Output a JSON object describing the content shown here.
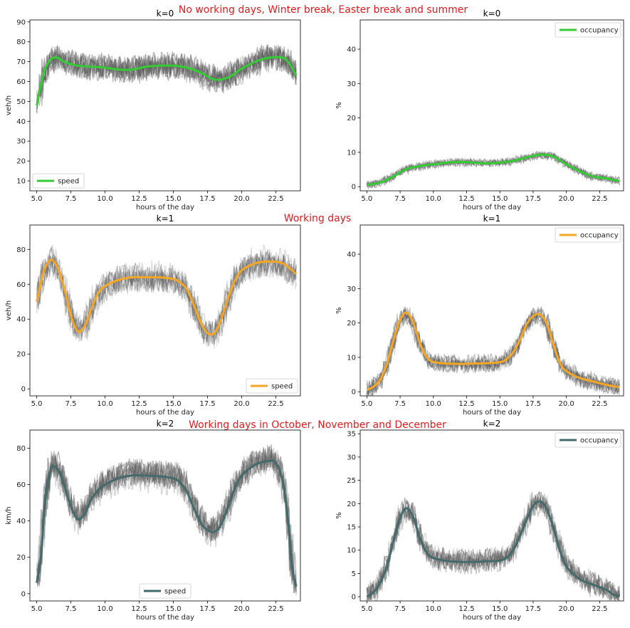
{
  "row_titles": [
    "No working days, Winter break, Easter break and summer",
    "Working days",
    "Working days in October, November and December"
  ],
  "chart_data": [
    {
      "type": "line",
      "title": "k=0",
      "xlabel": "hours of the day",
      "ylabel": "veh/h",
      "xlim": [
        4.5,
        24.3
      ],
      "ylim": [
        5,
        91
      ],
      "xticks": [
        5.0,
        7.5,
        10.0,
        12.5,
        15.0,
        17.5,
        20.0,
        22.5
      ],
      "xtick_labels": [
        "5.0",
        "7.5",
        "10.0",
        "12.5",
        "15.0",
        "17.5",
        "20.0",
        "22.5"
      ],
      "yticks": [
        10,
        20,
        30,
        40,
        50,
        60,
        70,
        80,
        90
      ],
      "ytick_labels": [
        "10",
        "20",
        "30",
        "40",
        "50",
        "60",
        "70",
        "80",
        "90"
      ],
      "legend": "lower-left",
      "color": "#33cc33",
      "series": [
        {
          "name": "speed",
          "x": [
            5.0,
            5.5,
            6.0,
            6.5,
            7.0,
            8.0,
            9.0,
            10.0,
            11.0,
            12.0,
            13.0,
            14.0,
            15.0,
            16.0,
            17.0,
            18.0,
            19.0,
            20.0,
            21.0,
            22.0,
            23.0,
            23.5,
            24.0
          ],
          "values": [
            48,
            64,
            71,
            72,
            70,
            68,
            67.5,
            67,
            66,
            66,
            67.5,
            68,
            68,
            67,
            64.5,
            61,
            62,
            66.5,
            70,
            72,
            72,
            69,
            63
          ]
        }
      ],
      "band": {
        "count": 8,
        "noise": 6,
        "offset": 2
      }
    },
    {
      "type": "line",
      "title": "k=0",
      "xlabel": "hours of the day",
      "ylabel": "%",
      "xlim": [
        4.5,
        24.3
      ],
      "ylim": [
        -1.2,
        48.5
      ],
      "xticks": [
        5.0,
        7.5,
        10.0,
        12.5,
        15.0,
        17.5,
        20.0,
        22.5
      ],
      "xtick_labels": [
        "5.0",
        "7.5",
        "10.0",
        "12.5",
        "15.0",
        "17.5",
        "20.0",
        "22.5"
      ],
      "yticks": [
        0,
        10,
        20,
        30,
        40
      ],
      "ytick_labels": [
        "0",
        "10",
        "20",
        "30",
        "40"
      ],
      "legend": "upper-right",
      "color": "#33cc33",
      "series": [
        {
          "name": "occupancy",
          "x": [
            5.0,
            6.0,
            7.0,
            8.0,
            9.0,
            10.0,
            11.0,
            12.0,
            13.0,
            14.0,
            15.0,
            16.0,
            17.0,
            18.0,
            19.0,
            20.0,
            21.0,
            22.0,
            23.0,
            24.0
          ],
          "values": [
            0.5,
            1.2,
            3.0,
            5.2,
            6.0,
            6.5,
            7.0,
            7.2,
            7.0,
            6.8,
            7.0,
            7.5,
            8.5,
            9.3,
            8.8,
            6.5,
            4.5,
            3.0,
            2.4,
            1.6
          ]
        }
      ],
      "band": {
        "count": 8,
        "noise": 0.8,
        "offset": 0.5
      }
    },
    {
      "type": "line",
      "title": "k=1",
      "xlabel": "hours of the day",
      "ylabel": "veh/h",
      "xlim": [
        4.5,
        24.3
      ],
      "ylim": [
        -4,
        94
      ],
      "xticks": [
        5.0,
        7.5,
        10.0,
        12.5,
        15.0,
        17.5,
        20.0,
        22.5
      ],
      "xtick_labels": [
        "5.0",
        "7.5",
        "10.0",
        "12.5",
        "15.0",
        "17.5",
        "20.0",
        "22.5"
      ],
      "yticks": [
        0,
        20,
        40,
        60,
        80
      ],
      "ytick_labels": [
        "0",
        "20",
        "40",
        "60",
        "80"
      ],
      "legend": "lower-right",
      "color": "#f5a623",
      "series": [
        {
          "name": "speed",
          "x": [
            5.0,
            5.5,
            6.0,
            6.5,
            7.0,
            7.5,
            8.0,
            8.5,
            9.0,
            9.5,
            10.0,
            11.0,
            12.0,
            13.0,
            14.0,
            15.0,
            15.5,
            16.0,
            16.5,
            17.0,
            17.5,
            18.0,
            18.5,
            19.0,
            19.5,
            20.0,
            21.0,
            22.0,
            23.0,
            24.0
          ],
          "values": [
            50,
            67,
            74,
            70,
            58,
            42,
            33,
            36,
            46,
            55,
            59,
            62.5,
            64,
            64,
            64,
            63,
            61,
            57,
            48,
            38,
            32,
            32,
            40,
            52,
            62,
            68,
            72,
            73,
            72,
            66
          ]
        }
      ],
      "band": {
        "count": 8,
        "noise": 7,
        "offset": 3
      }
    },
    {
      "type": "line",
      "title": "k=1",
      "xlabel": "hours of the day",
      "ylabel": "%",
      "xlim": [
        4.5,
        24.3
      ],
      "ylim": [
        -1.2,
        48.5
      ],
      "xticks": [
        5.0,
        7.5,
        10.0,
        12.5,
        15.0,
        17.5,
        20.0,
        22.5
      ],
      "xtick_labels": [
        "5.0",
        "7.5",
        "10.0",
        "12.5",
        "15.0",
        "17.5",
        "20.0",
        "22.5"
      ],
      "yticks": [
        0,
        10,
        20,
        30,
        40
      ],
      "ytick_labels": [
        "0",
        "10",
        "20",
        "30",
        "40"
      ],
      "legend": "upper-right",
      "color": "#f5a623",
      "series": [
        {
          "name": "occupancy",
          "x": [
            5.0,
            5.5,
            6.0,
            6.5,
            7.0,
            7.5,
            8.0,
            8.5,
            9.0,
            9.5,
            10.0,
            10.5,
            11.0,
            12.0,
            13.0,
            14.0,
            15.0,
            15.5,
            16.0,
            16.5,
            17.0,
            17.5,
            18.0,
            18.5,
            19.0,
            19.5,
            20.0,
            21.0,
            22.0,
            23.0,
            24.0
          ],
          "values": [
            0.5,
            1.5,
            3.5,
            8,
            15,
            21,
            23,
            20,
            14,
            10,
            8.7,
            8.4,
            8.2,
            8.1,
            8.2,
            8.3,
            8.6,
            9.5,
            11.5,
            15,
            19.5,
            22,
            22.5,
            20,
            14,
            8.5,
            6,
            4,
            3,
            2,
            1.3
          ]
        }
      ],
      "band": {
        "count": 8,
        "noise": 2,
        "offset": 1
      }
    },
    {
      "type": "line",
      "title": "k=2",
      "xlabel": "hours of the day",
      "ylabel": "km/h",
      "xlim": [
        4.5,
        24.3
      ],
      "ylim": [
        -4,
        90
      ],
      "xticks": [
        5.0,
        7.5,
        10.0,
        12.5,
        15.0,
        17.5,
        20.0,
        22.5
      ],
      "xtick_labels": [
        "5.0",
        "7.5",
        "10.0",
        "12.5",
        "15.0",
        "17.5",
        "20.0",
        "22.5"
      ],
      "yticks": [
        0,
        20,
        40,
        60,
        80
      ],
      "ytick_labels": [
        "0",
        "20",
        "40",
        "60",
        "80"
      ],
      "legend": "lower-center",
      "color": "#436b6b",
      "series": [
        {
          "name": "speed",
          "x": [
            5.0,
            5.3,
            5.6,
            6.0,
            6.3,
            6.7,
            7.0,
            7.5,
            8.0,
            8.5,
            9.0,
            9.5,
            10.0,
            11.0,
            12.0,
            13.0,
            14.0,
            15.0,
            15.5,
            16.0,
            16.5,
            17.0,
            17.5,
            18.0,
            18.5,
            19.0,
            19.5,
            20.0,
            21.0,
            22.0,
            22.5,
            23.0,
            23.4,
            23.7,
            24.0
          ],
          "values": [
            6,
            20,
            50,
            68,
            70,
            66,
            60,
            48,
            41,
            44,
            52,
            57,
            60,
            63.5,
            65,
            65,
            64.5,
            63.5,
            61,
            56,
            47,
            39,
            35,
            34,
            38,
            48,
            58,
            65,
            71,
            73,
            72,
            62,
            40,
            14,
            4
          ]
        }
      ],
      "band": {
        "count": 8,
        "noise": 7,
        "offset": 3
      }
    },
    {
      "type": "line",
      "title": "k=2",
      "xlabel": "hours of the day",
      "ylabel": "%",
      "xlim": [
        4.5,
        24.3
      ],
      "ylim": [
        -0.9,
        35.8
      ],
      "xticks": [
        5.0,
        7.5,
        10.0,
        12.5,
        15.0,
        17.5,
        20.0,
        22.5
      ],
      "xtick_labels": [
        "5.0",
        "7.5",
        "10.0",
        "12.5",
        "15.0",
        "17.5",
        "20.0",
        "22.5"
      ],
      "yticks": [
        0,
        5,
        10,
        15,
        20,
        25,
        30,
        35
      ],
      "ytick_labels": [
        "0",
        "5",
        "10",
        "15",
        "20",
        "25",
        "30",
        "35"
      ],
      "legend": "upper-right",
      "color": "#436b6b",
      "series": [
        {
          "name": "occupancy",
          "x": [
            5.0,
            5.5,
            6.0,
            6.5,
            7.0,
            7.5,
            8.0,
            8.5,
            9.0,
            9.5,
            10.0,
            11.0,
            12.0,
            13.0,
            14.0,
            15.0,
            15.5,
            16.0,
            16.5,
            17.0,
            17.5,
            18.0,
            18.5,
            19.0,
            19.5,
            20.0,
            21.0,
            22.0,
            23.0,
            23.5,
            24.0
          ],
          "values": [
            0,
            1,
            3,
            6.5,
            12,
            17,
            19,
            17,
            12.5,
            9.5,
            8.3,
            7.7,
            7.5,
            7.5,
            7.6,
            7.8,
            8.4,
            10,
            13,
            16.5,
            19.5,
            20.5,
            19,
            15,
            10,
            6.5,
            3.8,
            2.6,
            1.5,
            0.5,
            0.1
          ]
        }
      ],
      "band": {
        "count": 8,
        "noise": 2,
        "offset": 1
      }
    }
  ]
}
